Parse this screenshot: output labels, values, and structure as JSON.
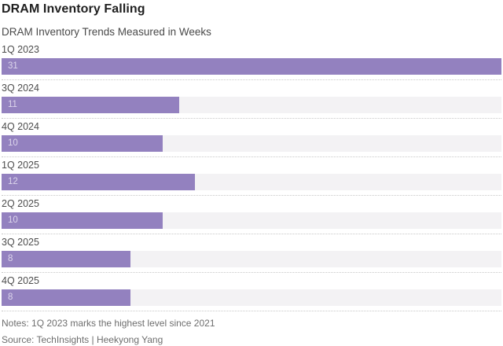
{
  "header": {
    "title": "DRAM Inventory Falling",
    "subtitle": "DRAM Inventory Trends Measured in Weeks"
  },
  "chart_data": {
    "type": "bar",
    "orientation": "horizontal",
    "title": "DRAM Inventory Falling",
    "subtitle": "DRAM Inventory Trends Measured in Weeks",
    "unit": "weeks",
    "categories": [
      "1Q 2023",
      "3Q 2024",
      "4Q 2024",
      "1Q 2025",
      "2Q 2025",
      "3Q 2025",
      "4Q 2025"
    ],
    "values": [
      31,
      11,
      10,
      12,
      10,
      8,
      8
    ],
    "xlim": [
      0,
      31
    ],
    "value_labels_shown": true,
    "grid": "dotted-row-separators",
    "colors": {
      "bar": "#9381bf",
      "track": "#f3f2f4",
      "value_label": "#ddd6ec",
      "category_label": "#4d4d4d",
      "separator": "#c9c9c9"
    }
  },
  "footer": {
    "notes": "Notes: 1Q 2023 marks the highest level since 2021",
    "source": "Source: TechInsights | Heekyong Yang"
  }
}
